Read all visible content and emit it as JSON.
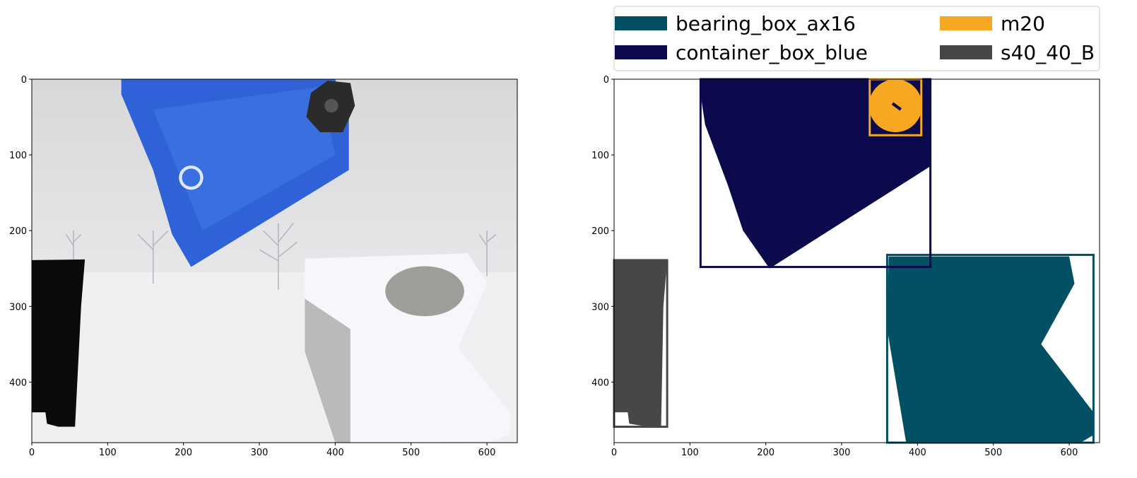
{
  "chart_data": [
    {
      "type": "image",
      "xlim": [
        0,
        640
      ],
      "ylim": [
        480,
        0
      ],
      "xticks": [
        0,
        100,
        200,
        300,
        400,
        500,
        600
      ],
      "yticks": [
        0,
        100,
        200,
        300,
        400
      ]
    },
    {
      "type": "image",
      "xlim": [
        0,
        640
      ],
      "ylim": [
        480,
        0
      ],
      "xticks": [
        0,
        100,
        200,
        300,
        400,
        500,
        600
      ],
      "yticks": [
        0,
        100,
        200,
        300,
        400
      ],
      "legend": "above",
      "series": [
        {
          "name": "bearing_box_ax16",
          "color": "#034f63",
          "values": [
            360,
            232,
            632,
            480
          ]
        },
        {
          "name": "container_box_blue",
          "color": "#0b0a4c",
          "values": [
            114,
            0,
            417,
            248
          ]
        },
        {
          "name": "m20",
          "color": "#f6a823",
          "values": [
            337,
            0,
            405,
            74
          ]
        },
        {
          "name": "s40_40_B",
          "color": "#474747",
          "values": [
            0,
            239,
            70,
            459
          ]
        }
      ]
    }
  ]
}
